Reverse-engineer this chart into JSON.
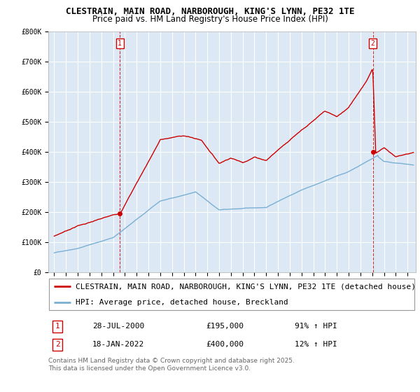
{
  "title": "CLESTRAIN, MAIN ROAD, NARBOROUGH, KING'S LYNN, PE32 1TE",
  "subtitle": "Price paid vs. HM Land Registry's House Price Index (HPI)",
  "ylim": [
    0,
    800000
  ],
  "yticks": [
    0,
    100000,
    200000,
    300000,
    400000,
    500000,
    600000,
    700000,
    800000
  ],
  "ytick_labels": [
    "£0",
    "£100K",
    "£200K",
    "£300K",
    "£400K",
    "£500K",
    "£600K",
    "£700K",
    "£800K"
  ],
  "xlim_start": 1994.5,
  "xlim_end": 2025.7,
  "line1_color": "#cc0000",
  "line2_color": "#7aafd4",
  "plot_bg_color": "#dce9f5",
  "background_color": "#ffffff",
  "grid_color": "#ffffff",
  "transaction1_x": 2000.57,
  "transaction1_y": 195000,
  "transaction1_label": "1",
  "transaction2_x": 2022.05,
  "transaction2_y": 400000,
  "transaction2_label": "2",
  "vline1_x": 2000.57,
  "vline2_x": 2022.05,
  "legend_line1": "CLESTRAIN, MAIN ROAD, NARBOROUGH, KING'S LYNN, PE32 1TE (detached house)",
  "legend_line2": "HPI: Average price, detached house, Breckland",
  "ann1_num": "1",
  "ann1_date": "28-JUL-2000",
  "ann1_price": "£195,000",
  "ann1_hpi": "91% ↑ HPI",
  "ann2_num": "2",
  "ann2_date": "18-JAN-2022",
  "ann2_price": "£400,000",
  "ann2_hpi": "12% ↑ HPI",
  "footer": "Contains HM Land Registry data © Crown copyright and database right 2025.\nThis data is licensed under the Open Government Licence v3.0.",
  "title_fontsize": 9,
  "subtitle_fontsize": 8.5,
  "tick_fontsize": 7,
  "legend_fontsize": 8,
  "ann_fontsize": 8,
  "footer_fontsize": 6.5
}
